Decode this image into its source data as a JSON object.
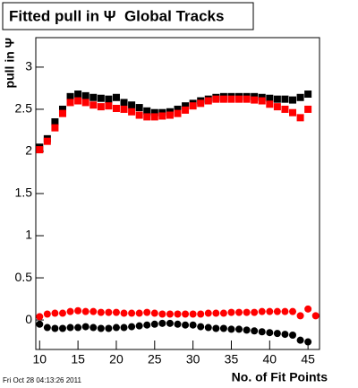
{
  "chart_data": {
    "type": "scatter",
    "title": "Fitted pull in Ψ  Global Tracks",
    "y_label": "pull in Ψ",
    "x_label": "No. of Fit Points",
    "footer": "Fri Oct 28 04:13:26 2011",
    "xlim": [
      9.5,
      46.5
    ],
    "ylim": [
      -0.35,
      3.35
    ],
    "xticks": [
      10,
      15,
      20,
      25,
      30,
      35,
      40,
      45
    ],
    "yticks": [
      0,
      0.5,
      1,
      1.5,
      2,
      2.5,
      3
    ],
    "series": [
      {
        "color": "#000000",
        "marker": "square",
        "x": [
          10,
          11,
          12,
          13,
          14,
          15,
          16,
          17,
          18,
          19,
          20,
          21,
          22,
          23,
          24,
          25,
          26,
          27,
          28,
          29,
          30,
          31,
          32,
          33,
          34,
          35,
          36,
          37,
          38,
          39,
          40,
          41,
          42,
          43,
          44,
          45
        ],
        "values": [
          2.05,
          2.15,
          2.35,
          2.5,
          2.65,
          2.68,
          2.66,
          2.64,
          2.63,
          2.62,
          2.64,
          2.58,
          2.55,
          2.52,
          2.48,
          2.46,
          2.46,
          2.47,
          2.5,
          2.54,
          2.57,
          2.6,
          2.62,
          2.64,
          2.65,
          2.65,
          2.65,
          2.65,
          2.65,
          2.64,
          2.63,
          2.62,
          2.62,
          2.61,
          2.64,
          2.68
        ]
      },
      {
        "color": "#ff0000",
        "marker": "square",
        "x": [
          10,
          11,
          12,
          13,
          14,
          15,
          16,
          17,
          18,
          19,
          20,
          21,
          22,
          23,
          24,
          25,
          26,
          27,
          28,
          29,
          30,
          31,
          32,
          33,
          34,
          35,
          36,
          37,
          38,
          39,
          40,
          41,
          42,
          43,
          44,
          45
        ],
        "values": [
          2.02,
          2.12,
          2.28,
          2.45,
          2.58,
          2.6,
          2.58,
          2.55,
          2.53,
          2.54,
          2.51,
          2.5,
          2.47,
          2.43,
          2.41,
          2.41,
          2.42,
          2.43,
          2.45,
          2.49,
          2.54,
          2.57,
          2.6,
          2.62,
          2.62,
          2.62,
          2.62,
          2.62,
          2.61,
          2.6,
          2.56,
          2.53,
          2.5,
          2.46,
          2.4,
          2.5
        ]
      },
      {
        "color": "#ff0000",
        "marker": "circle",
        "x": [
          10,
          11,
          12,
          13,
          14,
          15,
          16,
          17,
          18,
          19,
          20,
          21,
          22,
          23,
          24,
          25,
          26,
          27,
          28,
          29,
          30,
          31,
          32,
          33,
          34,
          35,
          36,
          37,
          38,
          39,
          40,
          41,
          42,
          43,
          44,
          45,
          46
        ],
        "values": [
          0.04,
          0.07,
          0.08,
          0.08,
          0.1,
          0.11,
          0.1,
          0.1,
          0.09,
          0.09,
          0.09,
          0.08,
          0.08,
          0.08,
          0.09,
          0.08,
          0.07,
          0.07,
          0.07,
          0.07,
          0.07,
          0.07,
          0.08,
          0.08,
          0.08,
          0.09,
          0.09,
          0.09,
          0.09,
          0.1,
          0.1,
          0.1,
          0.1,
          0.1,
          0.05,
          0.13,
          0.05
        ]
      },
      {
        "color": "#000000",
        "marker": "circle",
        "x": [
          10,
          11,
          12,
          13,
          14,
          15,
          16,
          17,
          18,
          19,
          20,
          21,
          22,
          23,
          24,
          25,
          26,
          27,
          28,
          29,
          30,
          31,
          32,
          33,
          34,
          35,
          36,
          37,
          38,
          39,
          40,
          41,
          42,
          43,
          44,
          45
        ],
        "values": [
          -0.05,
          -0.09,
          -0.1,
          -0.1,
          -0.09,
          -0.09,
          -0.08,
          -0.09,
          -0.1,
          -0.1,
          -0.09,
          -0.09,
          -0.08,
          -0.07,
          -0.06,
          -0.05,
          -0.04,
          -0.04,
          -0.05,
          -0.06,
          -0.06,
          -0.08,
          -0.09,
          -0.1,
          -0.1,
          -0.11,
          -0.11,
          -0.12,
          -0.13,
          -0.14,
          -0.15,
          -0.16,
          -0.17,
          -0.18,
          -0.24,
          -0.26
        ]
      }
    ]
  }
}
